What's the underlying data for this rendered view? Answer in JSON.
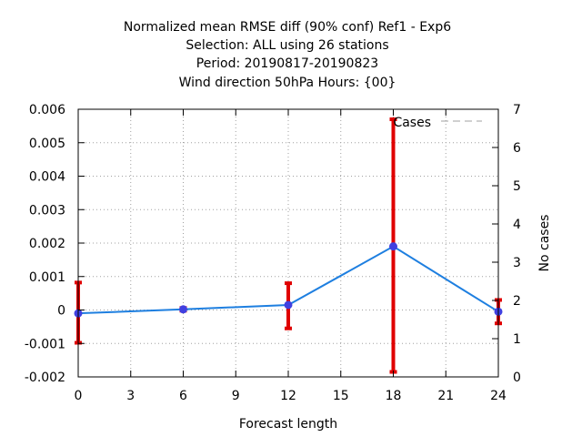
{
  "chart_data": {
    "type": "line",
    "title_lines": [
      "Normalized mean RMSE diff (90% conf) Ref1 - Exp6",
      "Selection: ALL using    26 stations",
      "Period: 20190817-20190823",
      "Wind direction 50hPa   Hours: {00}"
    ],
    "xlabel": "Forecast length",
    "ylabel": "",
    "y2label": "No cases",
    "xlim": [
      0,
      24
    ],
    "ylim": [
      -0.002,
      0.006
    ],
    "y2lim": [
      0,
      7
    ],
    "x_ticks": [
      0,
      3,
      6,
      9,
      12,
      15,
      18,
      21,
      24
    ],
    "y_ticks": [
      -0.002,
      -0.001,
      0,
      0.001,
      0.002,
      0.003,
      0.004,
      0.005,
      0.006
    ],
    "y_tick_labels": [
      "-0.002",
      "-0.001",
      "0",
      "0.001",
      "0.002",
      "0.003",
      "0.004",
      "0.005",
      "0.006"
    ],
    "y2_ticks": [
      0,
      1,
      2,
      3,
      4,
      5,
      6,
      7
    ],
    "grid": true,
    "legend_position": "top-right",
    "series": [
      {
        "name": "",
        "x": [
          0,
          6,
          12,
          18,
          24
        ],
        "y": [
          -0.0001,
          2e-05,
          0.00015,
          0.0019,
          -5e-05
        ],
        "err_low": [
          -0.00098,
          -2e-05,
          -0.00055,
          -0.00185,
          -0.0004
        ],
        "err_high": [
          0.00082,
          6e-05,
          0.0008,
          0.0057,
          0.0003
        ],
        "color": "#1e7fe0",
        "marker_color": "#4040e0",
        "error_color": "#e00000"
      },
      {
        "name": "Cases",
        "x": [
          0,
          6,
          12,
          18,
          24
        ],
        "y": [
          7,
          7,
          7,
          7,
          7
        ],
        "axis": "y2",
        "color": "#a0a0a0",
        "style": "dashed"
      }
    ]
  }
}
